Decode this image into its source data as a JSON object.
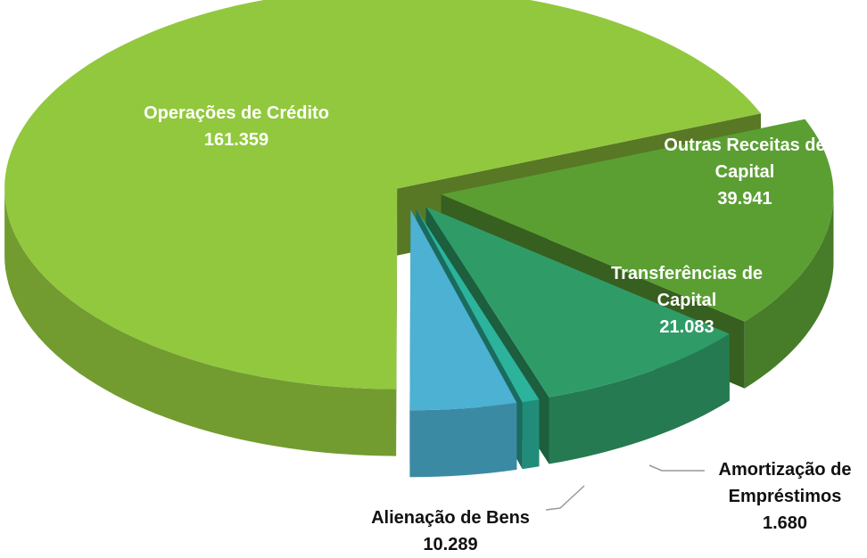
{
  "chart_data": {
    "type": "pie",
    "categories": [
      "Outras Receitas de Capital",
      "Transferências de Capital",
      "Amortização de Empréstimos",
      "Alienação de Bens",
      "Operações de Crédito"
    ],
    "values": [
      39941,
      21083,
      1680,
      10289,
      161359
    ],
    "value_labels": [
      "39.941",
      "21.083",
      "1.680",
      "10.289",
      "161.359"
    ],
    "colors": [
      "#5b9f33",
      "#2f9c68",
      "#2bb39c",
      "#4cb1d2",
      "#92c83e"
    ]
  }
}
